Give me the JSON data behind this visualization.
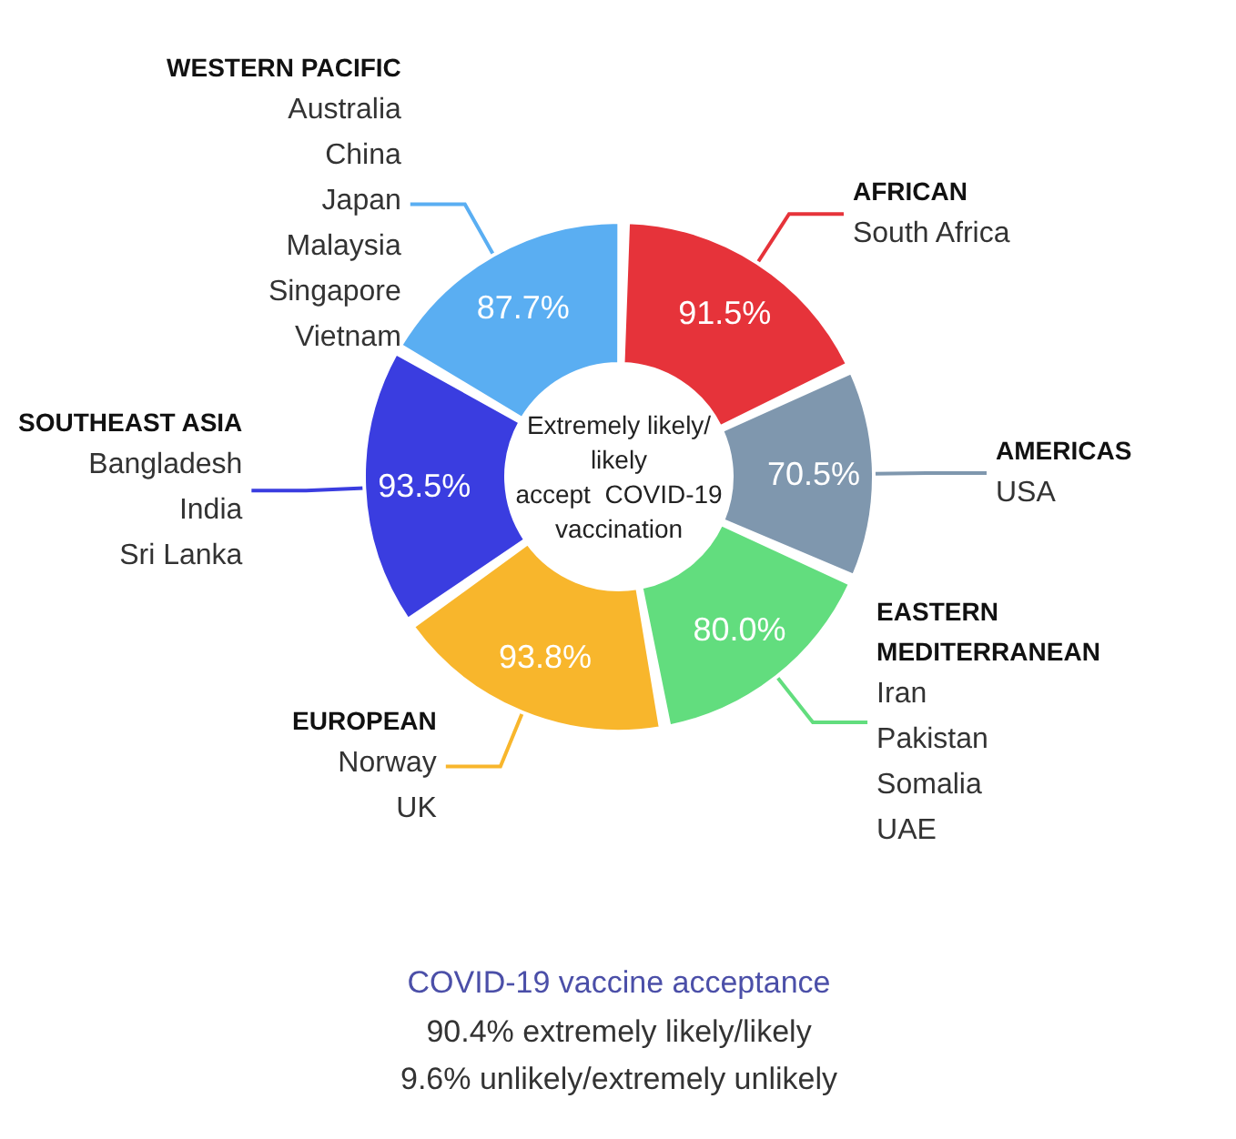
{
  "chart_data": {
    "type": "other",
    "title": "Extremely likely/\nlikely\naccept  COVID-19\nvaccination",
    "subtitle": "COVID-19 vaccine acceptance",
    "categories": [
      "WESTERN PACIFIC",
      "AFRICAN",
      "AMERICAS",
      "EASTERN\nMEDITERRANEAN",
      "EUROPEAN",
      "SOUTHEAST ASIA"
    ],
    "values": [
      87.7,
      91.5,
      70.5,
      80.0,
      93.8,
      93.5
    ],
    "value_labels": [
      "87.7%",
      "91.5%",
      "70.5%",
      "80.0%",
      "93.8%",
      "93.5%"
    ],
    "colors": [
      "#5aaef2",
      "#e6333a",
      "#7f97ae",
      "#62dd7e",
      "#f8b62c",
      "#3a3de0"
    ],
    "annotations": [
      "Australia\nChina\nJapan\nMalaysia\nSingapore\nVietnam",
      "South Africa",
      "USA",
      "Iran\nPakistan\nSomalia\nUAE",
      "Norway\nUK",
      "Bangladesh\nIndia\nSri Lanka",
      "90.4% extremely likely/likely",
      "9.6% unlikely/extremely unlikely"
    ],
    "legend": false
  }
}
